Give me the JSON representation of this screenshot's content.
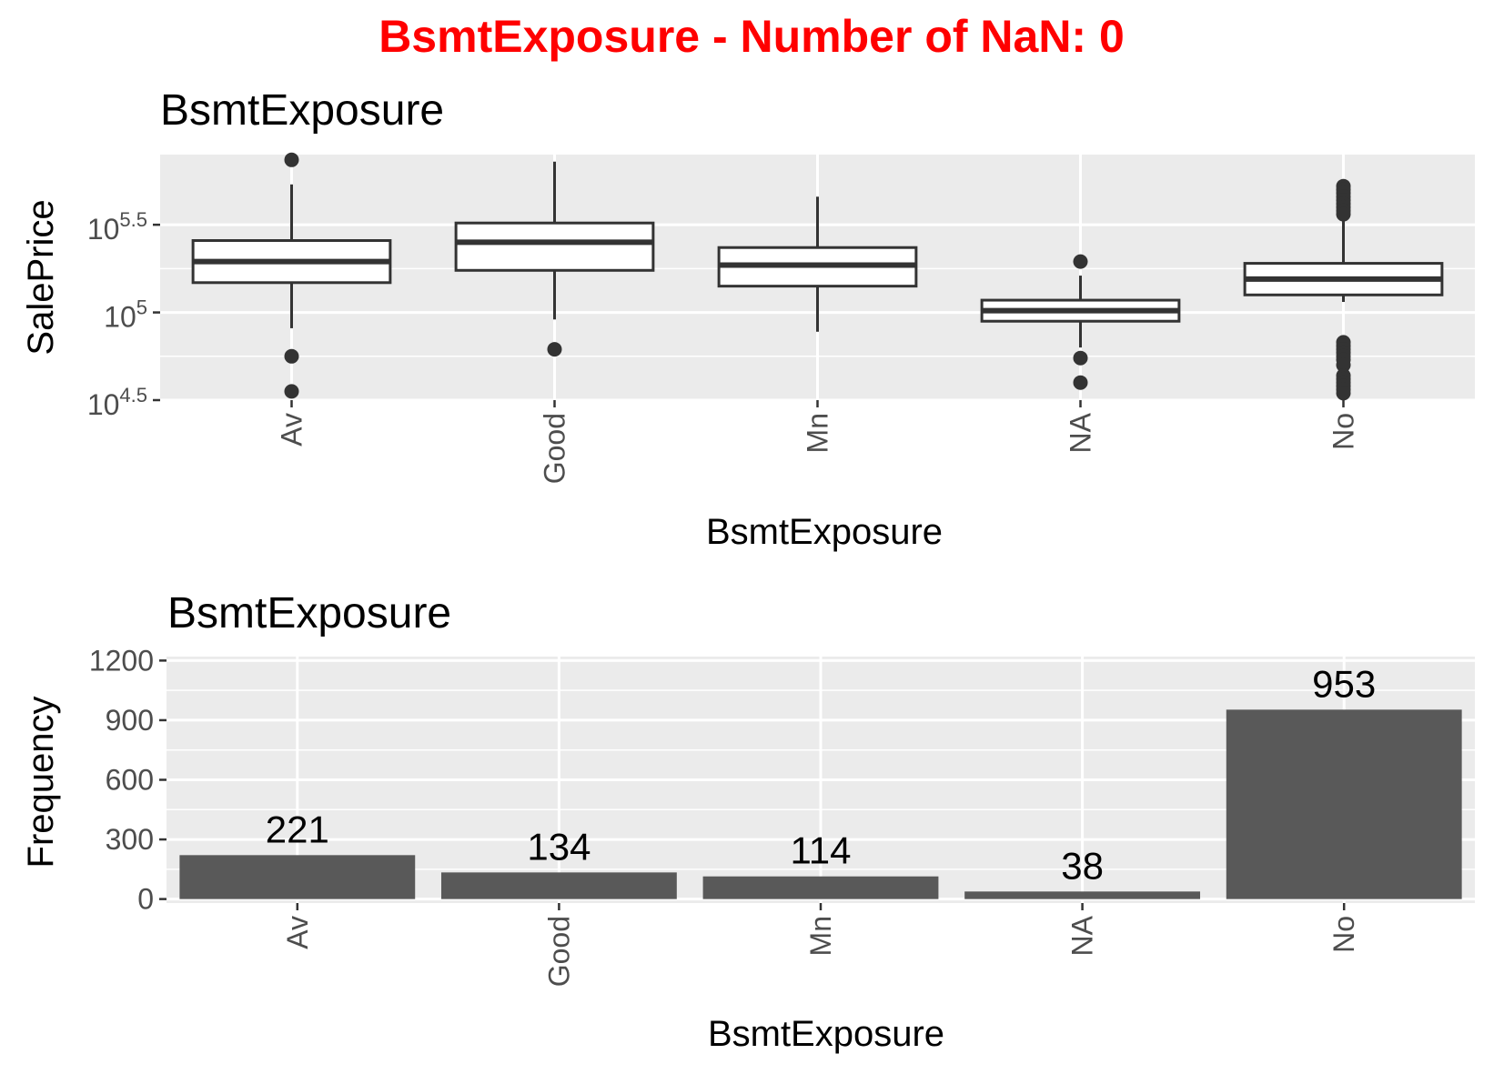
{
  "figure_title": "BsmtExposure - Number of NaN: 0",
  "colors": {
    "suptitle": "#ff0000",
    "panel_bg": "#ebebeb",
    "grid": "#ffffff",
    "bar_fill": "#595959",
    "box_line": "#333333",
    "tick_text": "#4d4d4d"
  },
  "chart_data": [
    {
      "type": "box",
      "title": "BsmtExposure",
      "xlabel": "BsmtExposure",
      "ylabel": "SalePrice",
      "y_scale": "log10",
      "ylim_log10": [
        4.5,
        5.9
      ],
      "y_ticks": [
        {
          "base": "10",
          "exp": "4.5",
          "value_log10": 4.5
        },
        {
          "base": "10",
          "exp": "5",
          "value_log10": 5.0
        },
        {
          "base": "10",
          "exp": "5.5",
          "value_log10": 5.5
        }
      ],
      "categories": [
        "Av",
        "Good",
        "Mn",
        "NA",
        "No"
      ],
      "boxes_log10": [
        {
          "category": "Av",
          "whisker_low": 4.91,
          "q1": 5.17,
          "median": 5.29,
          "q3": 5.41,
          "whisker_high": 5.73,
          "outliers": [
            4.75,
            4.55,
            5.87
          ]
        },
        {
          "category": "Good",
          "whisker_low": 4.96,
          "q1": 5.24,
          "median": 5.4,
          "q3": 5.51,
          "whisker_high": 5.86,
          "outliers": [
            4.79
          ]
        },
        {
          "category": "Mn",
          "whisker_low": 4.89,
          "q1": 5.15,
          "median": 5.27,
          "q3": 5.37,
          "whisker_high": 5.66,
          "outliers": []
        },
        {
          "category": "NA",
          "whisker_low": 4.8,
          "q1": 4.95,
          "median": 5.01,
          "q3": 5.07,
          "whisker_high": 5.21,
          "outliers": [
            5.29,
            4.74,
            4.6
          ]
        },
        {
          "category": "No",
          "whisker_low": 5.06,
          "q1": 5.1,
          "median": 5.19,
          "q3": 5.28,
          "whisker_high": 5.53,
          "outliers": [
            5.72,
            5.7,
            5.68,
            5.66,
            5.64,
            5.62,
            5.6,
            5.58,
            5.56,
            4.83,
            4.81,
            4.79,
            4.77,
            4.75,
            4.73,
            4.7,
            4.64,
            4.62,
            4.6,
            4.58,
            4.56,
            4.54
          ]
        }
      ]
    },
    {
      "type": "bar",
      "title": "BsmtExposure",
      "xlabel": "BsmtExposure",
      "ylabel": "Frequency",
      "ylim": [
        -20,
        1220
      ],
      "y_ticks": [
        0,
        300,
        600,
        900,
        1200
      ],
      "categories": [
        "Av",
        "Good",
        "Mn",
        "NA",
        "No"
      ],
      "values": [
        221,
        134,
        114,
        38,
        953
      ],
      "data_labels": [
        "221",
        "134",
        "114",
        "38",
        "953"
      ]
    }
  ]
}
